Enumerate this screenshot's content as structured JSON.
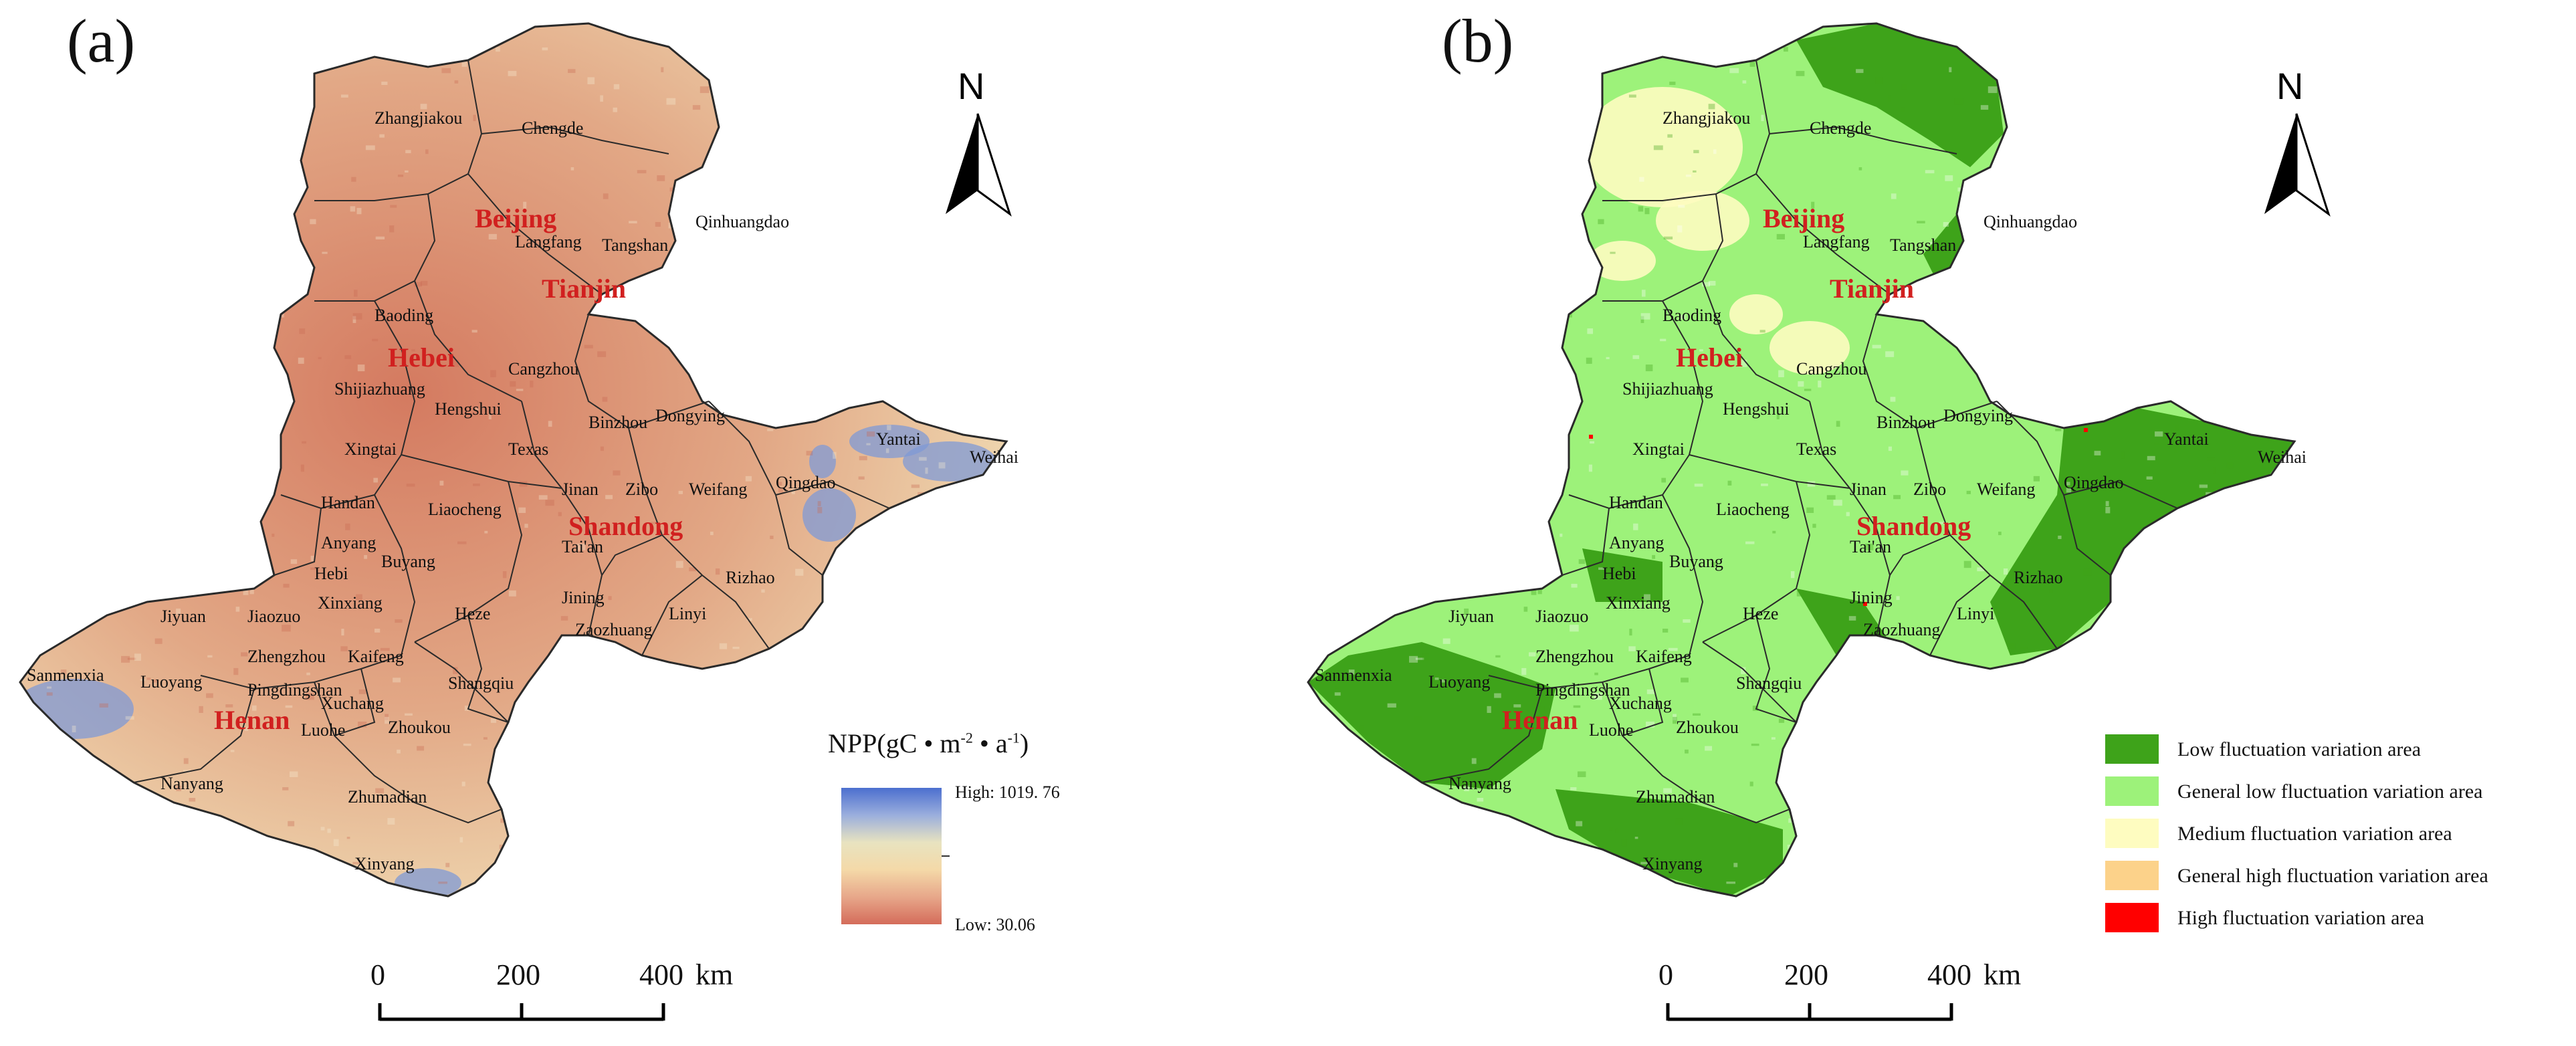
{
  "panels": {
    "a": {
      "label": "(a)",
      "legend": {
        "title_prefix": "NPP(gC • m",
        "title_sup1": "-2",
        "title_mid": " • a",
        "title_sup2": "-1",
        "title_suffix": ")",
        "high": "High: 1019. 76",
        "low": "Low: 30.06",
        "ramp_colors": [
          "#4c6fcf",
          "#9aaedd",
          "#e8e3c0",
          "#f4d9a8",
          "#e7a78a",
          "#d46c5a"
        ]
      }
    },
    "b": {
      "label": "(b)",
      "legend": {
        "categories": [
          {
            "label": "Low fluctuation variation area",
            "color": "#3ea31a"
          },
          {
            "label": "General low fluctuation variation area",
            "color": "#9df27a"
          },
          {
            "label": "Medium fluctuation variation area",
            "color": "#fefcc0"
          },
          {
            "label": "General high fluctuation variation area",
            "color": "#fcd28a"
          },
          {
            "label": "High fluctuation variation area",
            "color": "#ff0000"
          }
        ]
      }
    }
  },
  "north_arrow": {
    "letter": "N"
  },
  "scale_bar": {
    "ticks": [
      "0",
      "200",
      "400"
    ],
    "unit": "km"
  },
  "provinces": [
    "Beijing",
    "Tianjin",
    "Hebei",
    "Shandong",
    "Henan"
  ],
  "cities": [
    "Chengde",
    "Zhangjiakou",
    "Qinhuangdao",
    "Langfang",
    "Tangshan",
    "Baoding",
    "Cangzhou",
    "Shijiazhuang",
    "Hengshui",
    "Xingtai",
    "Texas",
    "Binzhou",
    "Dongying",
    "Yantai",
    "Weihai",
    "Handan",
    "Liaocheng",
    "Jinan",
    "Zibo",
    "Weifang",
    "Qingdao",
    "Anyang",
    "Buyang",
    "Tai'an",
    "Hebi",
    "Rizhao",
    "Xinxiang",
    "Heze",
    "Jining",
    "Linyi",
    "Jiyuan",
    "Jiaozuo",
    "Zaozhuang",
    "Zhengzhou",
    "Kaifeng",
    "Sanmenxia",
    "Luoyang",
    "Pingdingshan",
    "Xuchang",
    "Shangqiu",
    "Luohe",
    "Zhoukou",
    "Nanyang",
    "Zhumadian",
    "Xinyang"
  ],
  "colors": {
    "npp_main": "#f0dcb4",
    "npp_low": "#d47a60",
    "npp_high": "#7f9ad6",
    "fluct_low": "#3ea31a",
    "fluct_general_low": "#9df27a",
    "fluct_medium": "#fefcc0",
    "boundary": "#2a2a2a"
  }
}
